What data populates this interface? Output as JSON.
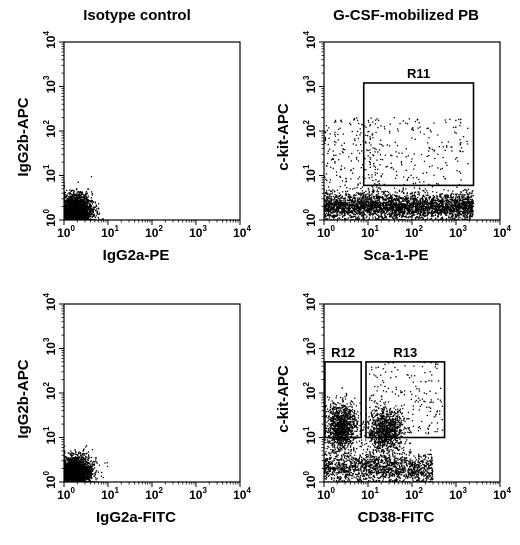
{
  "columns": {
    "left_title": "Isotype control",
    "right_title": "G-CSF-mobilized PB"
  },
  "colors": {
    "ink": "#000000",
    "background": "#ffffff"
  },
  "chart_data": [
    {
      "type": "scatter",
      "panel": "top-left",
      "xlabel": "IgG2a-PE",
      "ylabel": "IgG2b-APC",
      "x_scale": "log",
      "y_scale": "log",
      "xlim": [
        1,
        10000
      ],
      "ylim": [
        1,
        10000
      ],
      "x_ticks": [
        "10^0",
        "10^1",
        "10^2",
        "10^3",
        "10^4"
      ],
      "y_ticks": [
        "10^0",
        "10^1",
        "10^2",
        "10^3",
        "10^4"
      ],
      "grid": false,
      "populations": [
        {
          "shape": "dense-cluster",
          "x_center": 1.8,
          "y_center": 1.6,
          "x_spread_decades": 0.32,
          "y_spread_decades": 0.3,
          "count": 2600
        }
      ],
      "gates": []
    },
    {
      "type": "scatter",
      "panel": "top-right",
      "xlabel": "Sca-1-PE",
      "ylabel": "c-kit-APC",
      "x_scale": "log",
      "y_scale": "log",
      "xlim": [
        1,
        10000
      ],
      "ylim": [
        1,
        10000
      ],
      "x_ticks": [
        "10^0",
        "10^1",
        "10^2",
        "10^3",
        "10^4"
      ],
      "y_ticks": [
        "10^0",
        "10^1",
        "10^2",
        "10^3",
        "10^4"
      ],
      "grid": false,
      "populations": [
        {
          "shape": "band",
          "x_range": [
            1,
            2500
          ],
          "y_center": 2,
          "y_spread_decades": 0.25,
          "count": 3200
        },
        {
          "shape": "sparse-column",
          "x_range": [
            1,
            20
          ],
          "y_range": [
            3,
            200
          ],
          "count": 220
        },
        {
          "shape": "sparse-cloud",
          "x_range": [
            10,
            2000
          ],
          "y_range": [
            4,
            200
          ],
          "count": 200
        }
      ],
      "gates": [
        {
          "label": "R11",
          "x_range": [
            8,
            2500
          ],
          "y_range": [
            6,
            1200
          ]
        }
      ]
    },
    {
      "type": "scatter",
      "panel": "bottom-left",
      "xlabel": "IgG2a-FITC",
      "ylabel": "IgG2b-APC",
      "x_scale": "log",
      "y_scale": "log",
      "xlim": [
        1,
        10000
      ],
      "ylim": [
        1,
        10000
      ],
      "x_ticks": [
        "10^0",
        "10^1",
        "10^2",
        "10^3",
        "10^4"
      ],
      "y_ticks": [
        "10^0",
        "10^1",
        "10^2",
        "10^3",
        "10^4"
      ],
      "grid": false,
      "populations": [
        {
          "shape": "dense-cluster",
          "x_center": 1.8,
          "y_center": 1.6,
          "x_spread_decades": 0.32,
          "y_spread_decades": 0.3,
          "count": 2600
        }
      ],
      "gates": []
    },
    {
      "type": "scatter",
      "panel": "bottom-right",
      "xlabel": "CD38-FITC",
      "ylabel": "c-kit-APC",
      "x_scale": "log",
      "y_scale": "log",
      "xlim": [
        1,
        10000
      ],
      "ylim": [
        1,
        10000
      ],
      "x_ticks": [
        "10^0",
        "10^1",
        "10^2",
        "10^3",
        "10^4"
      ],
      "y_ticks": [
        "10^0",
        "10^1",
        "10^2",
        "10^3",
        "10^4"
      ],
      "grid": false,
      "populations": [
        {
          "shape": "dense-cluster",
          "x_center": 2.5,
          "y_center": 18,
          "x_spread_decades": 0.3,
          "y_spread_decades": 0.45,
          "count": 1100
        },
        {
          "shape": "dense-cluster",
          "x_center": 25,
          "y_center": 14,
          "x_spread_decades": 0.35,
          "y_spread_decades": 0.4,
          "count": 1000
        },
        {
          "shape": "band",
          "x_range": [
            1,
            300
          ],
          "y_center": 2,
          "y_spread_decades": 0.3,
          "count": 1500
        },
        {
          "shape": "sparse-cloud",
          "x_range": [
            10,
            500
          ],
          "y_range": [
            12,
            500
          ],
          "count": 180
        }
      ],
      "gates": [
        {
          "label": "R12",
          "x_range": [
            1.05,
            7
          ],
          "y_range": [
            10,
            500
          ]
        },
        {
          "label": "R13",
          "x_range": [
            9,
            550
          ],
          "y_range": [
            10,
            500
          ]
        }
      ]
    }
  ]
}
